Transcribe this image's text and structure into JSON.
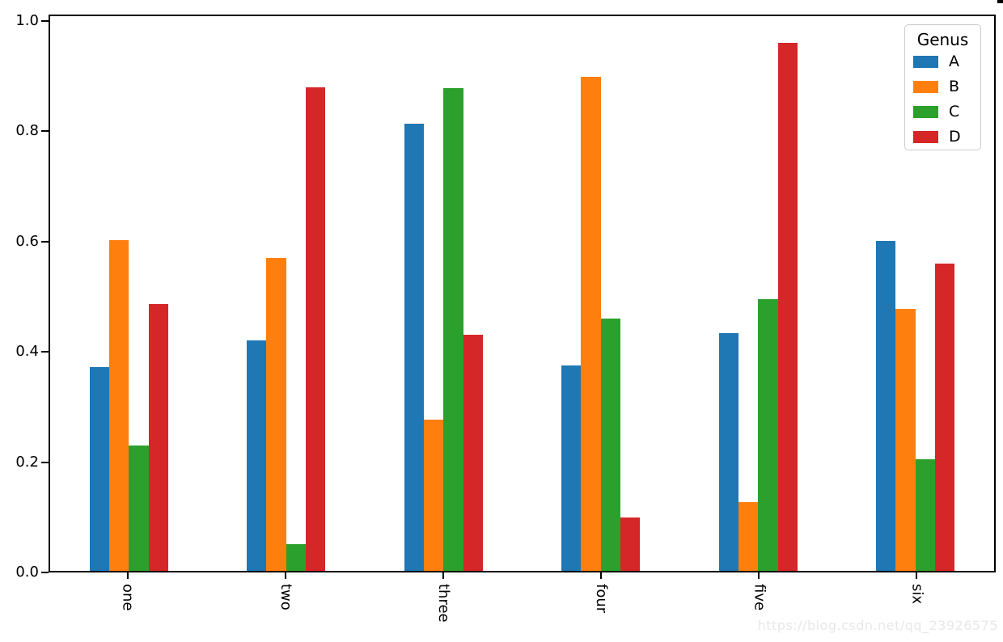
{
  "chart_data": {
    "type": "bar",
    "title": "",
    "xlabel": "",
    "ylabel": "",
    "grid": false,
    "categories": [
      "one",
      "two",
      "three",
      "four",
      "five",
      "six"
    ],
    "series": [
      {
        "name": "A",
        "color": "#1f77b4",
        "values": [
          0.371,
          0.42,
          0.815,
          0.374,
          0.433,
          0.601
        ]
      },
      {
        "name": "B",
        "color": "#ff7f0e",
        "values": [
          0.603,
          0.57,
          0.275,
          0.9,
          0.125,
          0.477
        ]
      },
      {
        "name": "C",
        "color": "#2ca02c",
        "values": [
          0.228,
          0.048,
          0.88,
          0.46,
          0.495,
          0.204
        ]
      },
      {
        "name": "D",
        "color": "#d62728",
        "values": [
          0.487,
          0.882,
          0.431,
          0.098,
          0.962,
          0.56
        ]
      }
    ],
    "legend": {
      "title": "Genus",
      "position": "upper right",
      "labels": [
        "A",
        "B",
        "C",
        "D"
      ]
    },
    "ylim": [
      0.0,
      1.011
    ],
    "yticks": [
      "0.0",
      "0.2",
      "0.4",
      "0.6",
      "0.8",
      "1.0"
    ],
    "ytick_values": [
      0.0,
      0.2,
      0.4,
      0.6,
      0.8,
      1.0
    ],
    "bar_group_fraction": 0.5,
    "xtick_rotation_deg": 90
  },
  "watermark": "https://blog.csdn.net/qq_23926575"
}
